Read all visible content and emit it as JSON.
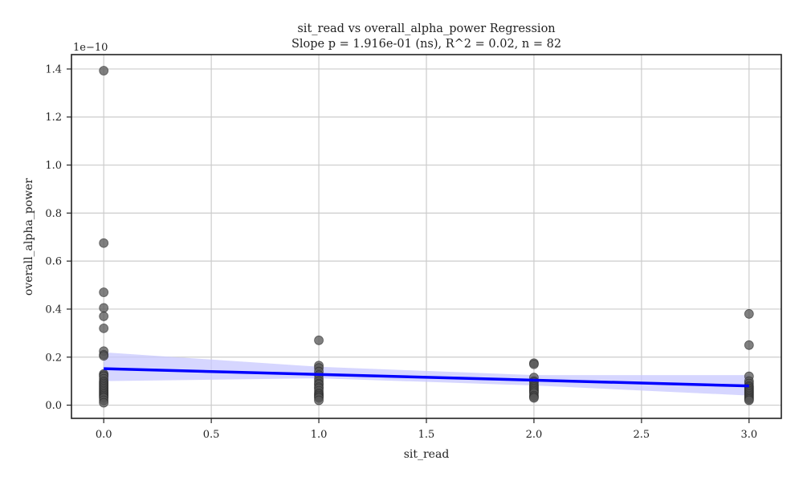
{
  "chart_data": {
    "type": "scatter",
    "title": "sit_read vs overall_alpha_power Regression",
    "subtitle": "Slope p = 1.916e-01 (ns), R^2 = 0.02, n = 82",
    "xlabel": "sit_read",
    "ylabel": "overall_alpha_power",
    "y_offset_label": "1e−10",
    "xlim": [
      -0.15,
      3.15
    ],
    "ylim": [
      -0.055,
      1.46
    ],
    "x_ticks": [
      0.0,
      0.5,
      1.0,
      1.5,
      2.0,
      2.5,
      3.0
    ],
    "x_tick_labels": [
      "0.0",
      "0.5",
      "1.0",
      "1.5",
      "2.0",
      "2.5",
      "3.0"
    ],
    "y_ticks": [
      0.0,
      0.2,
      0.4,
      0.6,
      0.8,
      1.0,
      1.2,
      1.4
    ],
    "y_tick_labels": [
      "0.0",
      "0.2",
      "0.4",
      "0.6",
      "0.8",
      "1.0",
      "1.2",
      "1.4"
    ],
    "grid": true,
    "colors": {
      "points": "#555555",
      "point_edge": "#222222",
      "line": "#0000ff",
      "band": "#c8c8ff",
      "grid": "#cccccc",
      "frame": "#222222"
    },
    "series": [
      {
        "marker": "point",
        "x": [
          0,
          0,
          0,
          0,
          0,
          0,
          0,
          0,
          0,
          0,
          0,
          0,
          0,
          0,
          0,
          0,
          0,
          0,
          0,
          0,
          0,
          0,
          0,
          0,
          0,
          0,
          0,
          0,
          0,
          0,
          1,
          1,
          1,
          1,
          1,
          1,
          1,
          1,
          1,
          1,
          1,
          1,
          1,
          1,
          1,
          1,
          1,
          1,
          2,
          2,
          2,
          2,
          2,
          2,
          2,
          2,
          2,
          2,
          2,
          2,
          2,
          2,
          2,
          2,
          3,
          3,
          3,
          3,
          3,
          3,
          3,
          3,
          3,
          3,
          3,
          3,
          3,
          3,
          3,
          3,
          3,
          3
        ],
        "y": [
          1.393,
          0.675,
          0.47,
          0.405,
          0.37,
          0.32,
          0.225,
          0.21,
          0.205,
          0.13,
          0.125,
          0.12,
          0.11,
          0.1,
          0.095,
          0.09,
          0.085,
          0.08,
          0.075,
          0.07,
          0.065,
          0.06,
          0.055,
          0.05,
          0.045,
          0.04,
          0.035,
          0.03,
          0.02,
          0.01,
          0.27,
          0.165,
          0.155,
          0.14,
          0.125,
          0.11,
          0.1,
          0.09,
          0.085,
          0.075,
          0.07,
          0.06,
          0.05,
          0.045,
          0.04,
          0.035,
          0.03,
          0.02,
          0.175,
          0.17,
          0.115,
          0.1,
          0.095,
          0.085,
          0.08,
          0.075,
          0.07,
          0.065,
          0.06,
          0.055,
          0.05,
          0.04,
          0.035,
          0.03,
          0.38,
          0.25,
          0.12,
          0.1,
          0.09,
          0.08,
          0.075,
          0.07,
          0.065,
          0.06,
          0.055,
          0.05,
          0.045,
          0.04,
          0.035,
          0.03,
          0.025,
          0.02
        ]
      },
      {
        "marker": "regression-line",
        "x": [
          0,
          3
        ],
        "y": [
          0.152,
          0.08
        ]
      },
      {
        "marker": "confidence-band",
        "x": [
          0,
          1,
          2,
          3
        ],
        "lower": [
          0.1,
          0.112,
          0.082,
          0.04
        ],
        "upper": [
          0.22,
          0.16,
          0.125,
          0.125
        ]
      }
    ]
  }
}
